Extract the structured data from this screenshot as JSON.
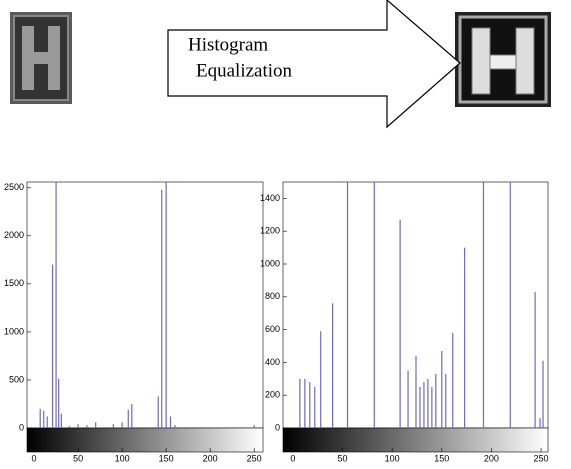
{
  "diagram": {
    "arrow_label": [
      "Histogram",
      "Equalization"
    ]
  },
  "chart_data": [
    {
      "type": "stem",
      "color": "#6a6acc",
      "x": [
        7,
        11,
        15,
        21,
        25,
        28,
        31,
        40,
        50,
        60,
        70,
        90,
        100,
        107,
        111,
        141,
        145,
        150,
        155,
        160,
        250
      ],
      "values": [
        200,
        180,
        120,
        1700,
        2560,
        510,
        150,
        20,
        40,
        30,
        60,
        40,
        60,
        190,
        250,
        330,
        2480,
        2560,
        120,
        30,
        30
      ],
      "xlim": [
        -8,
        260
      ],
      "ylim": [
        0,
        2560
      ],
      "xticks": [
        0,
        50,
        100,
        150,
        200,
        250
      ],
      "yticks": [
        0,
        500,
        1000,
        1500,
        2000,
        2500
      ]
    },
    {
      "type": "stem",
      "color": "#6a6acc",
      "x": [
        7,
        12,
        17,
        22,
        28,
        40,
        55,
        82,
        108,
        116,
        124,
        128,
        132,
        136,
        140,
        144,
        150,
        154,
        161,
        173,
        192,
        219,
        244,
        249,
        252
      ],
      "values": [
        300,
        300,
        280,
        250,
        590,
        760,
        1500,
        1500,
        1270,
        350,
        440,
        250,
        280,
        300,
        250,
        330,
        470,
        330,
        580,
        1100,
        1500,
        1500,
        830,
        60,
        410
      ],
      "xlim": [
        -10,
        257
      ],
      "ylim": [
        0,
        1500
      ],
      "xticks": [
        0,
        50,
        100,
        150,
        200,
        250
      ],
      "yticks": [
        0,
        200,
        400,
        600,
        800,
        1000,
        1200,
        1400
      ]
    }
  ]
}
